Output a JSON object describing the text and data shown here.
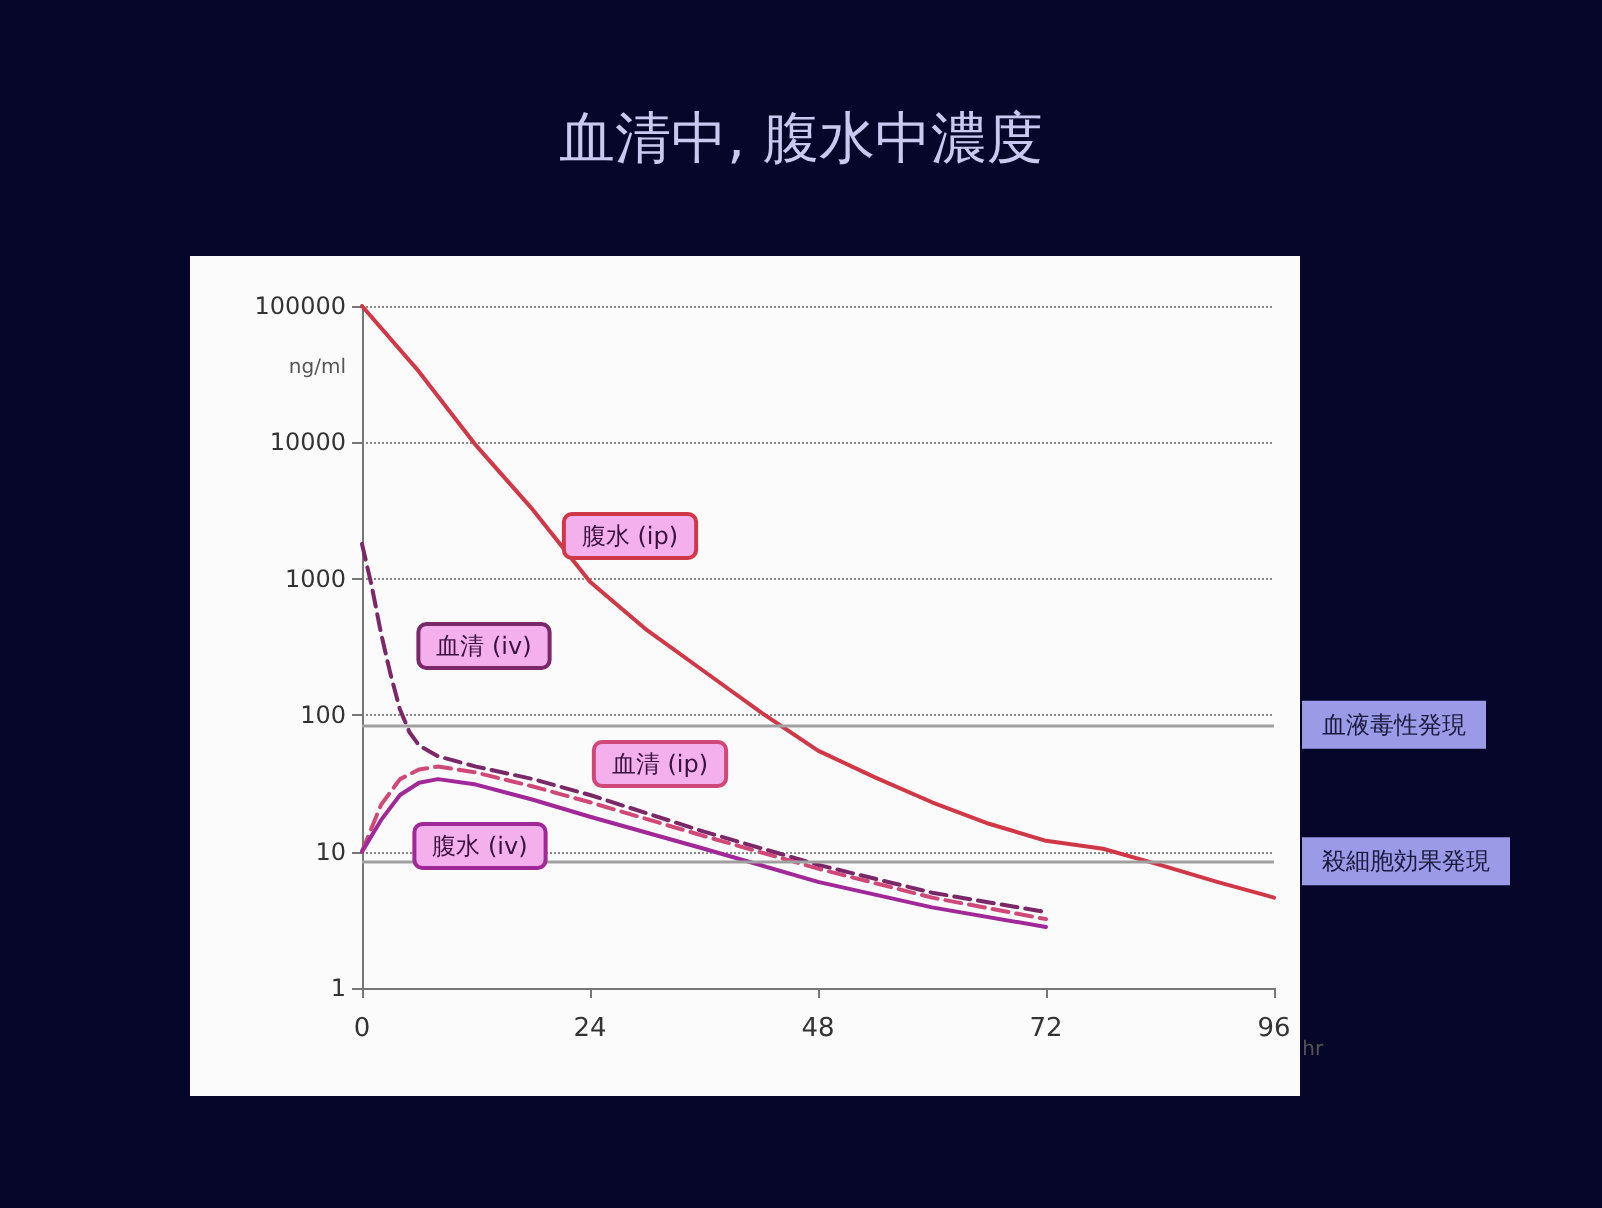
{
  "chart_data": {
    "type": "line",
    "title": "血清中, 腹水中濃度",
    "xlabel": "hr",
    "ylabel": "ng/ml",
    "log": "y",
    "xlim": [
      0,
      96
    ],
    "xticks": [
      0,
      24,
      48,
      72,
      96
    ],
    "ylim": [
      1,
      100000
    ],
    "yticks": [
      1,
      10,
      100,
      1000,
      10000,
      100000
    ],
    "grid": "y",
    "marker": "none",
    "series": [
      {
        "name": "腹水 (ip)",
        "color": "#d03848",
        "line_style": "solid",
        "x": [
          0,
          6,
          12,
          18,
          24,
          30,
          36,
          42,
          48,
          54,
          60,
          66,
          72,
          78,
          84,
          90,
          96
        ],
        "values": [
          100000,
          33000,
          9500,
          3200,
          950,
          420,
          210,
          105,
          55,
          35,
          23,
          16,
          12,
          10.5,
          8,
          6,
          4.6
        ]
      },
      {
        "name": "血清 (iv)",
        "color": "#7a2868",
        "line_style": "dashed",
        "x": [
          0,
          1,
          2,
          3,
          4,
          5,
          6,
          8,
          12,
          18,
          24,
          36,
          48,
          60,
          72
        ],
        "values": [
          1800,
          900,
          400,
          200,
          110,
          75,
          60,
          50,
          42,
          34,
          26,
          14,
          8,
          5,
          3.6
        ]
      },
      {
        "name": "血清 (ip)",
        "color": "#d04878",
        "line_style": "dashed",
        "x": [
          0,
          2,
          4,
          6,
          8,
          12,
          18,
          24,
          36,
          48,
          60,
          72
        ],
        "values": [
          10,
          22,
          34,
          40,
          42,
          38,
          30,
          23,
          13,
          7.5,
          4.6,
          3.2
        ]
      },
      {
        "name": "腹水 (iv)",
        "color": "#a02898",
        "line_style": "solid",
        "x": [
          0,
          2,
          4,
          6,
          8,
          12,
          18,
          24,
          36,
          48,
          60,
          72
        ],
        "values": [
          10,
          17,
          26,
          32,
          34,
          31,
          24,
          18,
          10.5,
          6,
          3.9,
          2.8
        ]
      }
    ],
    "ref_lines": [
      {
        "axis": "y",
        "value": 85,
        "label": "血液毒性発現",
        "color": "#a0a0a0"
      },
      {
        "axis": "y",
        "value": 8.5,
        "label": "殺細胞効果発現",
        "color": "#a0a0a0"
      }
    ]
  }
}
